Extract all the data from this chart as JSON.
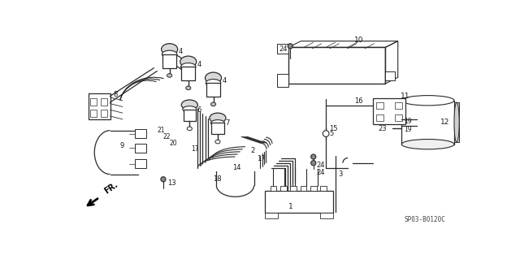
{
  "part_code": "SP03-B0120C",
  "bg": "#ffffff",
  "lc": "#2a2a2a",
  "tc": "#1a1a1a",
  "figsize": [
    6.4,
    3.19
  ],
  "dpi": 100
}
